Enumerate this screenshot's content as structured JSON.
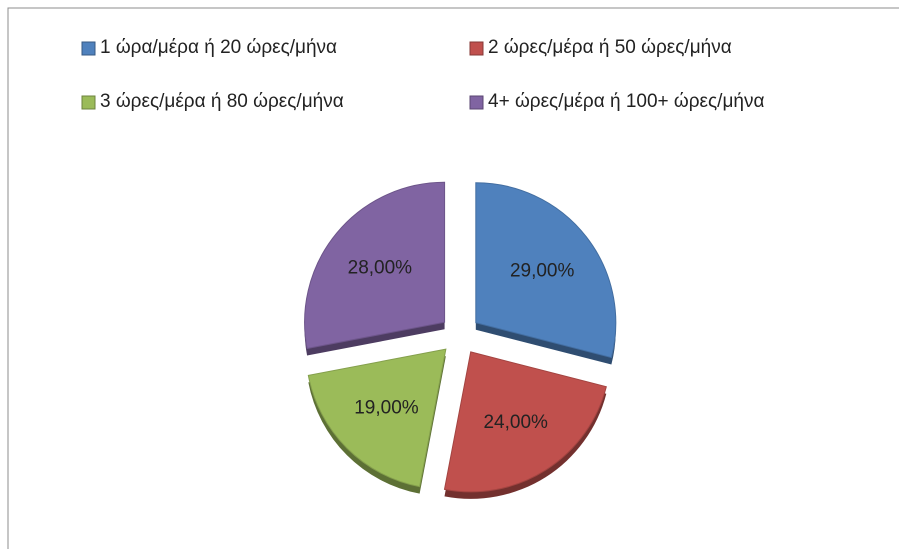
{
  "chart_data": {
    "type": "pie",
    "categories": [
      "1 ώρα/μέρα ή 20 ώρες/μήνα",
      "2 ώρες/μέρα ή 50 ώρες/μήνα",
      "3 ώρες/μέρα ή 80 ώρες/μήνα",
      "4+ ώρες/μέρα ή 100+ ώρες/μήνα"
    ],
    "values": [
      29,
      24,
      19,
      28
    ],
    "value_labels": [
      "29,00%",
      "24,00%",
      "19,00%",
      "28,00%"
    ],
    "colors": [
      "#4f81bd",
      "#c0504d",
      "#9bbb59",
      "#8064a2"
    ],
    "legend": "top"
  }
}
